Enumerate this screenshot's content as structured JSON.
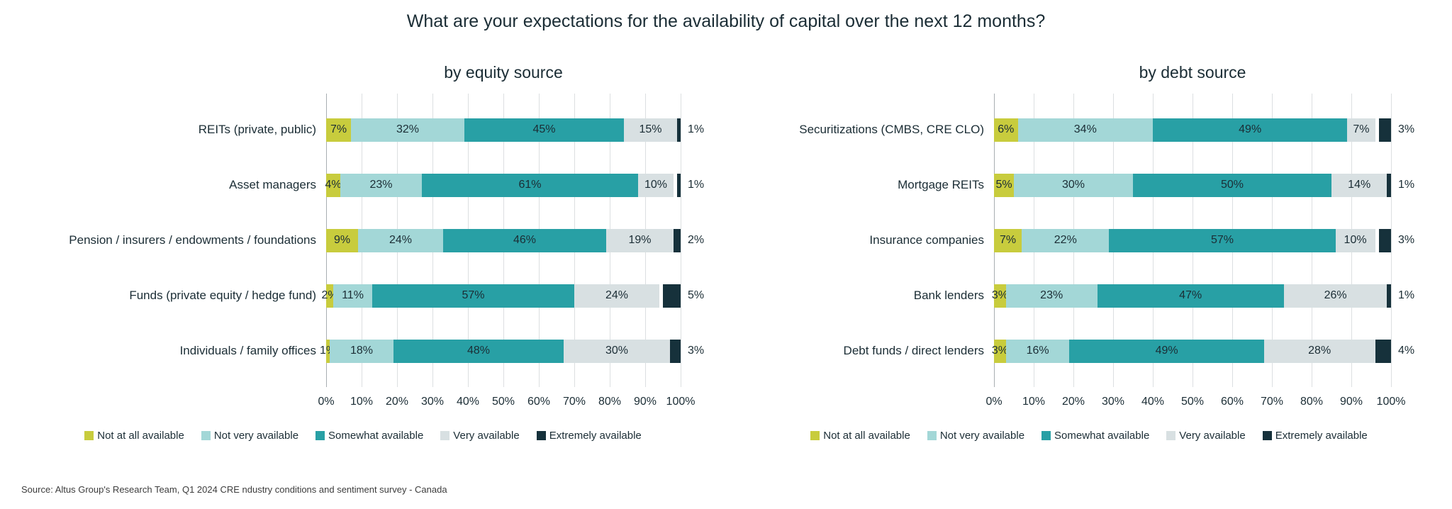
{
  "title": "What are your expectations for the availability of capital over the next 12 months?",
  "source": "Source: Altus Group's Research Team, Q1 2024 CRE ndustry conditions and sentiment survey - Canada",
  "colors": {
    "not_at_all_available": "#c8cc3d",
    "not_very_available": "#a3d7d7",
    "somewhat_available": "#28a0a5",
    "very_available": "#d8e0e2",
    "extremely_available": "#16313b",
    "text": "#1b2d35",
    "gridline": "#dcdfe1",
    "axis_line": "#a8aeb2"
  },
  "legend": {
    "position": "bottom",
    "items": [
      {
        "label": "Not at all available",
        "color": "#c8cc3d"
      },
      {
        "label": "Not very available",
        "color": "#a3d7d7"
      },
      {
        "label": "Somewhat available",
        "color": "#28a0a5"
      },
      {
        "label": "Very available",
        "color": "#d8e0e2"
      },
      {
        "label": "Extremely available",
        "color": "#16313b"
      }
    ]
  },
  "chart_data": [
    {
      "type": "bar",
      "orientation": "horizontal",
      "stacked": true,
      "grid": true,
      "title": "by equity source",
      "value_suffix": "%",
      "xlim": [
        0,
        100
      ],
      "x_ticks": [
        "0%",
        "10%",
        "20%",
        "30%",
        "40%",
        "50%",
        "60%",
        "70%",
        "80%",
        "90%",
        "100%"
      ],
      "categories": [
        "REITs (private, public)",
        "Asset managers",
        "Pension / insurers / endowments / foundations",
        "Funds (private equity / hedge fund)",
        "Individuals / family offices"
      ],
      "series": [
        {
          "name": "Not at all available",
          "color": "#c8cc3d",
          "values": [
            7,
            4,
            9,
            2,
            1
          ]
        },
        {
          "name": "Not very available",
          "color": "#a3d7d7",
          "values": [
            32,
            23,
            24,
            11,
            18
          ]
        },
        {
          "name": "Somewhat available",
          "color": "#28a0a5",
          "values": [
            45,
            61,
            46,
            57,
            48
          ]
        },
        {
          "name": "Very available",
          "color": "#d8e0e2",
          "values": [
            15,
            10,
            19,
            24,
            30
          ]
        },
        {
          "name": "Extremely available",
          "color": "#16313b",
          "values": [
            1,
            1,
            2,
            5,
            3
          ]
        }
      ]
    },
    {
      "type": "bar",
      "orientation": "horizontal",
      "stacked": true,
      "grid": true,
      "title": "by debt source",
      "value_suffix": "%",
      "xlim": [
        0,
        100
      ],
      "x_ticks": [
        "0%",
        "10%",
        "20%",
        "30%",
        "40%",
        "50%",
        "60%",
        "70%",
        "80%",
        "90%",
        "100%"
      ],
      "categories": [
        "Securitizations (CMBS, CRE CLO)",
        "Mortgage REITs",
        "Insurance companies",
        "Bank lenders",
        "Debt funds / direct lenders"
      ],
      "series": [
        {
          "name": "Not at all available",
          "color": "#c8cc3d",
          "values": [
            6,
            5,
            7,
            3,
            3
          ]
        },
        {
          "name": "Not very available",
          "color": "#a3d7d7",
          "values": [
            34,
            30,
            22,
            23,
            16
          ]
        },
        {
          "name": "Somewhat available",
          "color": "#28a0a5",
          "values": [
            49,
            50,
            57,
            47,
            49
          ]
        },
        {
          "name": "Very available",
          "color": "#d8e0e2",
          "values": [
            7,
            14,
            10,
            26,
            28
          ]
        },
        {
          "name": "Extremely available",
          "color": "#16313b",
          "values": [
            3,
            1,
            3,
            1,
            4
          ]
        }
      ]
    }
  ]
}
